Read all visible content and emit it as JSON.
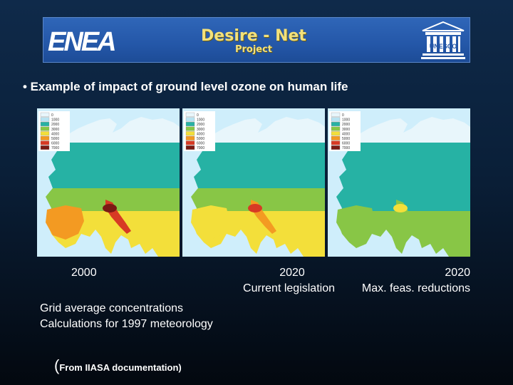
{
  "banner": {
    "left_logo": "ENEA",
    "title": "Desire - Net",
    "subtitle": "Project",
    "right_logo": "UNESCO"
  },
  "bullet_text": "• Example of impact of ground level ozone on human life",
  "maps": [
    {
      "legend": [
        "0",
        "1000",
        "2000",
        "3000",
        "4000",
        "5000",
        "6000",
        "7000"
      ],
      "caption_line1": "2000",
      "caption_line2": ""
    },
    {
      "legend": [
        "0",
        "1000",
        "2000",
        "3000",
        "4000",
        "5000",
        "6000",
        "7000"
      ],
      "caption_line1": "2020",
      "caption_line2": "Current legislation"
    },
    {
      "legend": [
        "0",
        "1000",
        "2000",
        "3000",
        "4000",
        "5000",
        "6000",
        "7000"
      ],
      "caption_line1": "2020",
      "caption_line2": "Max. feas. reductions"
    }
  ],
  "notes": {
    "line1": "Grid average concentrations",
    "line2": "Calculations for 1997 meteorology"
  },
  "source": {
    "open": "(",
    "text": "From IIASA documentation",
    "close": ")"
  },
  "colors": {
    "sea": "#cfeefb",
    "teal": "#26b2a4",
    "green": "#88c646",
    "yellow": "#f3df3a",
    "orange": "#f39a22",
    "red": "#d73a24",
    "darkred": "#7a1a14"
  }
}
